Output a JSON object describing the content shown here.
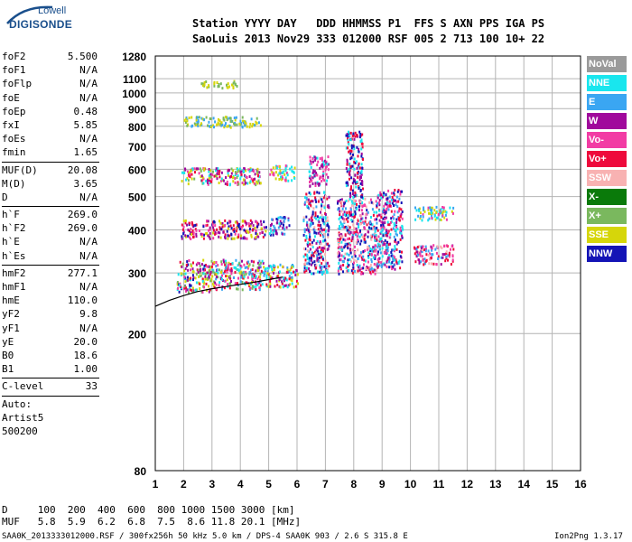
{
  "logo": {
    "line1": "Lowell",
    "line2": "DIGISONDE"
  },
  "header": {
    "row1": "Station YYYY DAY   DDD HHMMSS P1  FFS S AXN PPS IGA PS",
    "row2": "SaoLuis 2013 Nov29 333 012000 RSF 005 2 713 100 10+ 22"
  },
  "params": [
    {
      "name": "foF2",
      "value": "5.500"
    },
    {
      "name": "foF1",
      "value": "N/A"
    },
    {
      "name": "foFlp",
      "value": "N/A"
    },
    {
      "name": "foE",
      "value": "N/A"
    },
    {
      "name": "foEp",
      "value": "0.48"
    },
    {
      "name": "fxI",
      "value": "5.85"
    },
    {
      "name": "foEs",
      "value": "N/A"
    },
    {
      "name": "fmin",
      "value": "1.65"
    },
    {
      "sep": true
    },
    {
      "name": "MUF(D)",
      "value": "20.08"
    },
    {
      "name": "M(D)",
      "value": "3.65"
    },
    {
      "name": "D",
      "value": "N/A"
    },
    {
      "sep": true
    },
    {
      "name": "h`F",
      "value": "269.0"
    },
    {
      "name": "h`F2",
      "value": "269.0"
    },
    {
      "name": "h`E",
      "value": "N/A"
    },
    {
      "name": "h`Es",
      "value": "N/A"
    },
    {
      "sep": true
    },
    {
      "name": "hmF2",
      "value": "277.1"
    },
    {
      "name": "hmF1",
      "value": "N/A"
    },
    {
      "name": "hmE",
      "value": "110.0"
    },
    {
      "name": "yF2",
      "value": "9.8"
    },
    {
      "name": "yF1",
      "value": "N/A"
    },
    {
      "name": "yE",
      "value": "20.0"
    },
    {
      "name": "B0",
      "value": "18.6"
    },
    {
      "name": "B1",
      "value": "1.00"
    },
    {
      "sep": true
    },
    {
      "name": "C-level",
      "value": "33"
    },
    {
      "sep": true
    },
    {
      "text": "Auto:"
    },
    {
      "text": "Artist5"
    },
    {
      "text": "500200"
    }
  ],
  "legend": [
    {
      "label": "NoVal",
      "color": "#9a9a9a"
    },
    {
      "label": "NNE",
      "color": "#19e6ee"
    },
    {
      "label": "E",
      "color": "#3aa6f2"
    },
    {
      "label": "W",
      "color": "#a0099c"
    },
    {
      "label": "Vo-",
      "color": "#f23ca4"
    },
    {
      "label": "Vo+",
      "color": "#ee0a3c"
    },
    {
      "label": "SSW",
      "color": "#f8b2b2"
    },
    {
      "label": "X-",
      "color": "#0a7a0a"
    },
    {
      "label": "X+",
      "color": "#7ab85e"
    },
    {
      "label": "SSE",
      "color": "#d6d60a"
    },
    {
      "label": "NNW",
      "color": "#1414b6"
    }
  ],
  "footer": {
    "d_row": "D     100  200  400  600  800 1000 1500 3000 [km]",
    "muf_row": "MUF   5.8  5.9  6.2  6.8  7.5  8.6 11.8 20.1 [MHz]",
    "source": "SAA0K_2013333012000.RSF / 300fx256h 50 kHz 5.0 km / DPS-4 SAA0K 903 / 2.6 S 315.8 E",
    "version": "Ion2Png 1.3.17"
  },
  "chart_data": {
    "type": "scatter",
    "title": "",
    "xlabel": "",
    "ylabel": "",
    "xlim": [
      1,
      16
    ],
    "ylim": [
      80,
      1280
    ],
    "y_scale": "log",
    "x_ticks": [
      1,
      2,
      3,
      4,
      5,
      6,
      7,
      8,
      9,
      10,
      11,
      12,
      13,
      14,
      15,
      16
    ],
    "y_ticks": [
      80,
      200,
      300,
      400,
      500,
      600,
      700,
      800,
      900,
      1000,
      1100,
      1280
    ],
    "grid": true,
    "legend_position": "right",
    "trace_curve": {
      "name": "",
      "color": "#000000",
      "points": [
        [
          1.0,
          240
        ],
        [
          1.5,
          250
        ],
        [
          2.0,
          258
        ],
        [
          2.5,
          265
        ],
        [
          3.0,
          270
        ],
        [
          3.5,
          274
        ],
        [
          4.0,
          278
        ],
        [
          4.5,
          282
        ],
        [
          5.0,
          287
        ],
        [
          5.5,
          292
        ]
      ]
    },
    "echo_clusters": [
      {
        "x": [
          1.75,
          2.9
        ],
        "y": [
          265,
          330
        ],
        "colors": [
          "#ee0a3c",
          "#f23ca4",
          "#a0099c",
          "#d6d60a",
          "#7ab85e",
          "#1414b6",
          "#19e6ee"
        ]
      },
      {
        "x": [
          2.9,
          4.8
        ],
        "y": [
          270,
          330
        ],
        "colors": [
          "#ee0a3c",
          "#f23ca4",
          "#d6d60a",
          "#7ab85e",
          "#19e6ee",
          "#a0099c",
          "#3aa6f2"
        ]
      },
      {
        "x": [
          4.8,
          6.0
        ],
        "y": [
          275,
          320
        ],
        "colors": [
          "#19e6ee",
          "#3aa6f2",
          "#ee0a3c",
          "#d6d60a",
          "#a0099c"
        ]
      },
      {
        "x": [
          1.9,
          4.9
        ],
        "y": [
          380,
          430
        ],
        "colors": [
          "#a0099c",
          "#ee0a3c",
          "#1414b6",
          "#d6d60a",
          "#f23ca4"
        ]
      },
      {
        "x": [
          5.0,
          5.7
        ],
        "y": [
          390,
          440
        ],
        "colors": [
          "#1414b6",
          "#19e6ee",
          "#3aa6f2",
          "#a0099c"
        ]
      },
      {
        "x": [
          1.9,
          4.7
        ],
        "y": [
          545,
          610
        ],
        "colors": [
          "#a0099c",
          "#ee0a3c",
          "#f23ca4",
          "#d6d60a",
          "#7ab85e",
          "#19e6ee"
        ]
      },
      {
        "x": [
          5.0,
          5.9
        ],
        "y": [
          560,
          620
        ],
        "colors": [
          "#f23ca4",
          "#19e6ee",
          "#d6d60a"
        ]
      },
      {
        "x": [
          2.0,
          4.7
        ],
        "y": [
          800,
          860
        ],
        "colors": [
          "#d6d60a",
          "#7ab85e",
          "#3aa6f2"
        ]
      },
      {
        "x": [
          2.6,
          3.9
        ],
        "y": [
          1040,
          1090
        ],
        "colors": [
          "#d6d60a",
          "#7ab85e"
        ]
      },
      {
        "x": [
          6.2,
          7.1
        ],
        "y": [
          300,
          520
        ],
        "colors": [
          "#ee0a3c",
          "#19e6ee",
          "#3aa6f2",
          "#f8b2b2",
          "#a0099c",
          "#1414b6"
        ]
      },
      {
        "x": [
          6.4,
          7.1
        ],
        "y": [
          540,
          660
        ],
        "colors": [
          "#f23ca4",
          "#a0099c",
          "#19e6ee"
        ]
      },
      {
        "x": [
          7.4,
          8.8
        ],
        "y": [
          300,
          500
        ],
        "colors": [
          "#19e6ee",
          "#3aa6f2",
          "#f8b2b2",
          "#a0099c",
          "#1414b6",
          "#f23ca4",
          "#ee0a3c"
        ]
      },
      {
        "x": [
          7.7,
          8.3
        ],
        "y": [
          500,
          780
        ],
        "colors": [
          "#1414b6",
          "#a0099c",
          "#19e6ee",
          "#ee0a3c"
        ]
      },
      {
        "x": [
          8.8,
          9.7
        ],
        "y": [
          310,
          530
        ],
        "colors": [
          "#f23ca4",
          "#19e6ee",
          "#3aa6f2",
          "#a0099c",
          "#ee0a3c",
          "#1414b6"
        ]
      },
      {
        "x": [
          10.1,
          11.5
        ],
        "y": [
          320,
          365
        ],
        "colors": [
          "#a0099c",
          "#f23ca4",
          "#ee0a3c",
          "#f8b2b2",
          "#3aa6f2"
        ]
      },
      {
        "x": [
          10.1,
          11.5
        ],
        "y": [
          430,
          470
        ],
        "colors": [
          "#f23ca4",
          "#d6d60a",
          "#3aa6f2",
          "#19e6ee"
        ]
      }
    ]
  }
}
